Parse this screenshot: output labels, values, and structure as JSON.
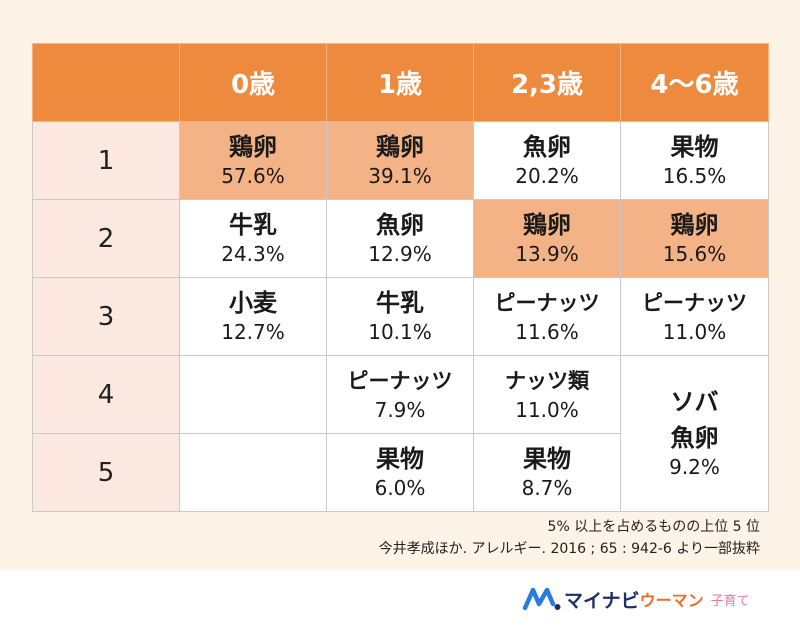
{
  "chart_data": {
    "type": "table",
    "columns": [
      "",
      "0歳",
      "1歳",
      "2,3歳",
      "4〜6歳"
    ],
    "rows": [
      {
        "rank": "1",
        "cells": [
          {
            "food": "鶏卵",
            "value": "57.6%",
            "highlight": true
          },
          {
            "food": "鶏卵",
            "value": "39.1%",
            "highlight": true
          },
          {
            "food": "魚卵",
            "value": "20.2%",
            "highlight": false
          },
          {
            "food": "果物",
            "value": "16.5%",
            "highlight": false
          }
        ]
      },
      {
        "rank": "2",
        "cells": [
          {
            "food": "牛乳",
            "value": "24.3%",
            "highlight": false
          },
          {
            "food": "魚卵",
            "value": "12.9%",
            "highlight": false
          },
          {
            "food": "鶏卵",
            "value": "13.9%",
            "highlight": true
          },
          {
            "food": "鶏卵",
            "value": "15.6%",
            "highlight": true
          }
        ]
      },
      {
        "rank": "3",
        "cells": [
          {
            "food": "小麦",
            "value": "12.7%",
            "highlight": false
          },
          {
            "food": "牛乳",
            "value": "10.1%",
            "highlight": false
          },
          {
            "food": "ピーナッツ",
            "value": "11.6%",
            "highlight": false
          },
          {
            "food": "ピーナッツ",
            "value": "11.0%",
            "highlight": false
          }
        ]
      },
      {
        "rank": "4",
        "cells": [
          {
            "food": "",
            "value": "",
            "highlight": false
          },
          {
            "food": "ピーナッツ",
            "value": "7.9%",
            "highlight": false
          },
          {
            "food": "ナッツ類",
            "value": "11.0%",
            "highlight": false
          },
          {
            "food": "ソバ",
            "food2": "魚卵",
            "value": "9.2%",
            "highlight": false,
            "rowspan": 2
          }
        ]
      },
      {
        "rank": "5",
        "cells": [
          {
            "food": "",
            "value": "",
            "highlight": false
          },
          {
            "food": "果物",
            "value": "6.0%",
            "highlight": false
          },
          {
            "food": "果物",
            "value": "8.7%",
            "highlight": false
          }
        ]
      }
    ],
    "notes": [
      "5% 以上を占めるものの上位 5 位",
      "今井孝成ほか. アレルギー. 2016 ; 65 : 942-6 より一部抜粋"
    ]
  },
  "colors": {
    "header": "#ee8a3e",
    "highlight": "#f3b386",
    "rank_bg": "#fbe9e1",
    "background": "#fdf3e6"
  },
  "footer": {
    "brand_main": "マイナビ",
    "brand_sub": "ウーマン",
    "brand_tag": "子育て",
    "logo_icon": "mynavi-logo-icon"
  }
}
